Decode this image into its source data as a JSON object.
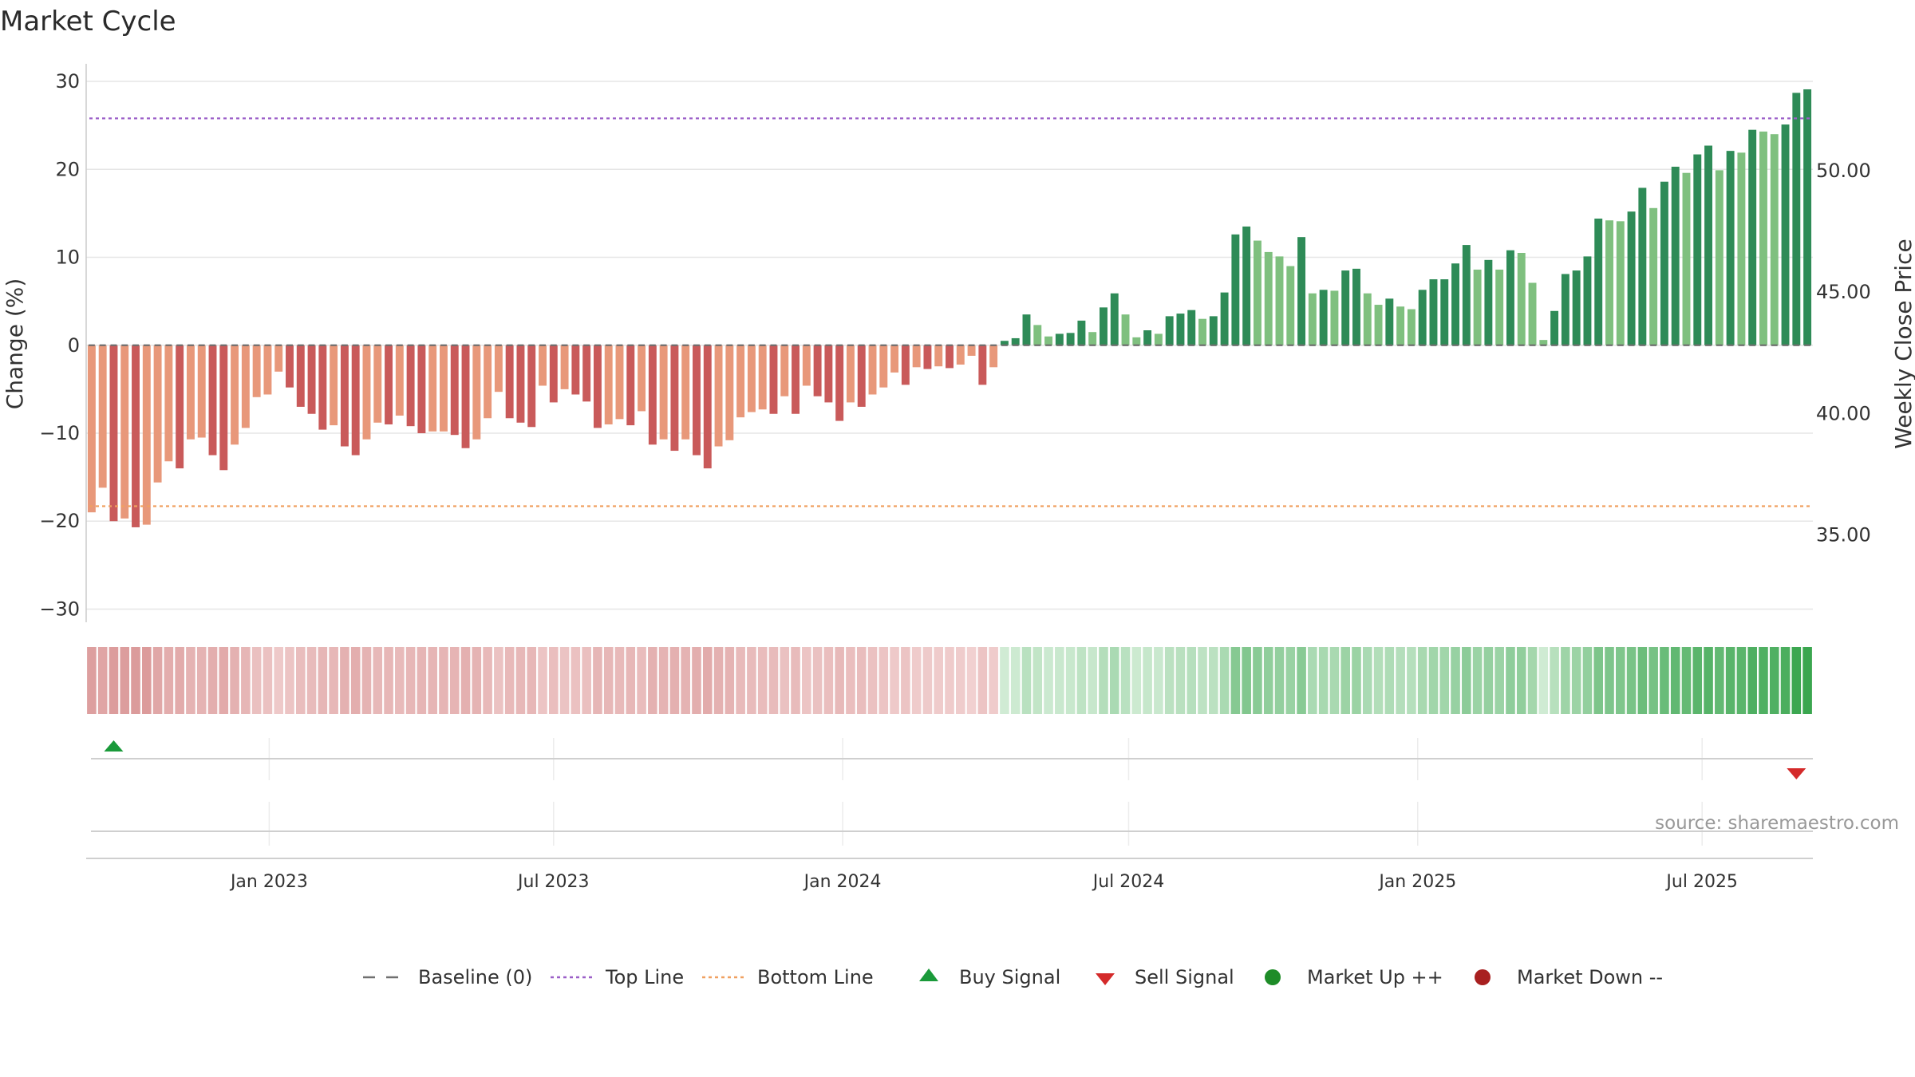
{
  "chart_data": {
    "type": "bar",
    "title": "Market Cycle",
    "ylabel_left": "Change (%)",
    "ylabel_right": "Weekly Close Price",
    "source": "source: sharemaestro.com",
    "x_start_date": "2022-09-10",
    "x_step_days": 7,
    "x_tick_labels": [
      "Jan 2023",
      "Jul 2023",
      "Jan 2024",
      "Jul 2024",
      "Jan 2025",
      "Jul 2025"
    ],
    "x_tick_dates": [
      "2023-01-01",
      "2023-07-01",
      "2024-01-01",
      "2024-07-01",
      "2025-01-01",
      "2025-07-01"
    ],
    "y_left": {
      "ylim": [
        -31.5,
        32
      ],
      "ticks": [
        30,
        20,
        10,
        0,
        -10,
        -20,
        -30
      ],
      "tick_labels": [
        "30",
        "20",
        "10",
        "0",
        "−10",
        "−20",
        "−30"
      ]
    },
    "y_right": {
      "ticks": [
        50,
        45,
        40,
        35
      ],
      "tick_labels": [
        "50.00",
        "45.00",
        "40.00",
        "35.00"
      ]
    },
    "grid": true,
    "top_line": 25.8,
    "bottom_line": -18.3,
    "baseline": 0,
    "series": [
      {
        "name": "Change (%)",
        "values": [
          -19.0,
          -16.2,
          -20.0,
          -19.7,
          -20.7,
          -20.4,
          -15.6,
          -13.2,
          -14.0,
          -10.7,
          -10.5,
          -12.5,
          -14.2,
          -11.3,
          -9.4,
          -5.9,
          -5.6,
          -3.0,
          -4.8,
          -7.0,
          -7.8,
          -9.6,
          -9.1,
          -11.5,
          -12.5,
          -10.7,
          -8.8,
          -9.0,
          -8.0,
          -9.2,
          -10.0,
          -9.8,
          -9.8,
          -10.2,
          -11.7,
          -10.7,
          -8.3,
          -5.3,
          -8.3,
          -8.8,
          -9.3,
          -4.6,
          -6.5,
          -5.0,
          -5.6,
          -6.4,
          -9.4,
          -9.0,
          -8.4,
          -9.1,
          -7.5,
          -11.3,
          -10.7,
          -12.0,
          -10.7,
          -12.5,
          -14.0,
          -11.5,
          -10.8,
          -8.2,
          -7.6,
          -7.3,
          -7.8,
          -5.8,
          -7.8,
          -4.6,
          -5.8,
          -6.5,
          -8.6,
          -6.5,
          -7.0,
          -5.6,
          -4.8,
          -3.1,
          -4.5,
          -2.5,
          -2.7,
          -2.4,
          -2.6,
          -2.2,
          -1.2,
          -4.5,
          -2.5,
          0.5,
          0.8,
          3.5,
          2.3,
          1.0,
          1.3,
          1.4,
          2.8,
          1.5,
          4.3,
          5.9,
          3.5,
          0.9,
          1.7,
          1.3,
          3.3,
          3.6,
          4.0,
          3.0,
          3.3,
          6.0,
          12.6,
          13.5,
          11.9,
          10.6,
          10.1,
          9.0,
          12.3,
          5.9,
          6.3,
          6.2,
          8.5,
          8.7,
          5.9,
          4.6,
          5.3,
          4.4,
          4.1,
          6.3,
          7.5,
          7.5,
          9.3,
          11.4,
          8.6,
          9.7,
          8.6,
          10.8,
          10.5,
          7.1,
          0.6,
          3.9,
          8.1,
          8.5,
          10.1,
          14.4,
          14.2,
          14.1,
          15.2,
          17.9,
          15.6,
          18.6,
          20.3,
          19.6,
          21.7,
          22.7,
          19.9,
          22.1,
          21.9,
          24.5,
          24.3,
          24.0,
          25.1,
          28.7,
          29.1
        ]
      },
      {
        "name": "Baseline (0)"
      },
      {
        "name": "Top Line"
      },
      {
        "name": "Bottom Line"
      },
      {
        "name": "Buy Signal",
        "points": [
          {
            "index": 2,
            "date": "2022-09-24"
          }
        ]
      },
      {
        "name": "Sell Signal",
        "points": [
          {
            "index": 155,
            "date": "2025-08-30"
          }
        ]
      },
      {
        "name": "Market Up ++",
        "points": []
      },
      {
        "name": "Market Down --",
        "points": []
      }
    ],
    "legend": {
      "position": "bottom",
      "items": [
        {
          "label": "Baseline (0)",
          "symbol": "dash",
          "color": "#707070"
        },
        {
          "label": "Top Line",
          "symbol": "dot-line",
          "color": "#9b5fc8"
        },
        {
          "label": "Bottom Line",
          "symbol": "dot-line",
          "color": "#f0a060"
        },
        {
          "label": "Buy Signal",
          "symbol": "triangle-up",
          "color": "#1a9a3a"
        },
        {
          "label": "Sell Signal",
          "symbol": "triangle-down",
          "color": "#d42a2a"
        },
        {
          "label": "Market Up ++",
          "symbol": "circle",
          "color": "#1e8c28"
        },
        {
          "label": "Market Down --",
          "symbol": "circle",
          "color": "#a82020"
        }
      ]
    },
    "colors": {
      "neg_dark": "#c95a5a",
      "neg_light": "#e8987a",
      "pos_dark": "#2e8b57",
      "pos_light": "#7fc07f",
      "heat_neg": "#d48888",
      "heat_pos": "#3aa64f",
      "top_line": "#9b5fc8",
      "bottom_line": "#f0a060",
      "buy": "#1a9a3a",
      "sell": "#d42a2a"
    }
  }
}
